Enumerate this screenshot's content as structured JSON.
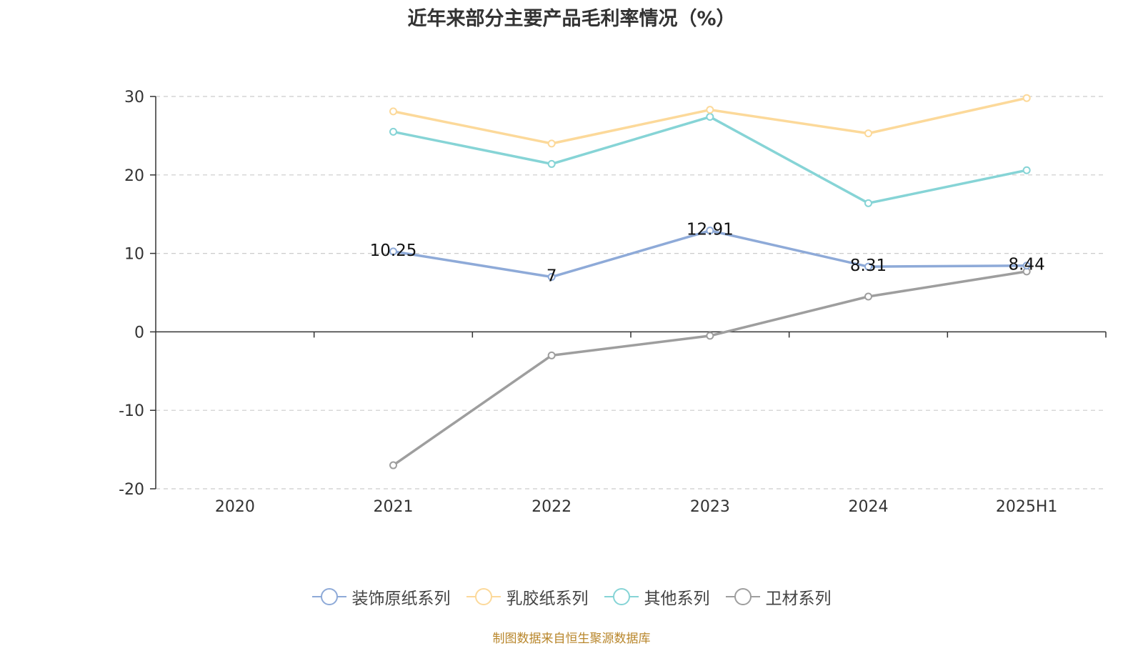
{
  "chart_data": {
    "type": "line",
    "title": "近年来部分主要产品毛利率情况（%）",
    "categories": [
      "2020",
      "2021",
      "2022",
      "2023",
      "2024",
      "2025H1"
    ],
    "ylim": [
      -20,
      30
    ],
    "yticks": [
      -20,
      -10,
      0,
      10,
      20,
      30
    ],
    "grid": true,
    "legend_position": "bottom",
    "series": [
      {
        "name": "装饰原纸系列",
        "color": "#8eaad8",
        "values": [
          null,
          10.25,
          7,
          12.91,
          8.31,
          8.44
        ],
        "labels": [
          "",
          "10.25",
          "7",
          "12.91",
          "8.31",
          "8.44"
        ]
      },
      {
        "name": "乳胶纸系列",
        "color": "#fcd99a",
        "values": [
          null,
          28.1,
          24,
          28.3,
          25.3,
          29.8
        ]
      },
      {
        "name": "其他系列",
        "color": "#86d4d6",
        "values": [
          null,
          25.5,
          21.4,
          27.4,
          16.4,
          20.6
        ]
      },
      {
        "name": "卫材系列",
        "color": "#9e9e9e",
        "values": [
          null,
          -17,
          -3,
          -0.5,
          4.5,
          7.7
        ]
      }
    ]
  },
  "source": "制图数据来自恒生聚源数据库"
}
